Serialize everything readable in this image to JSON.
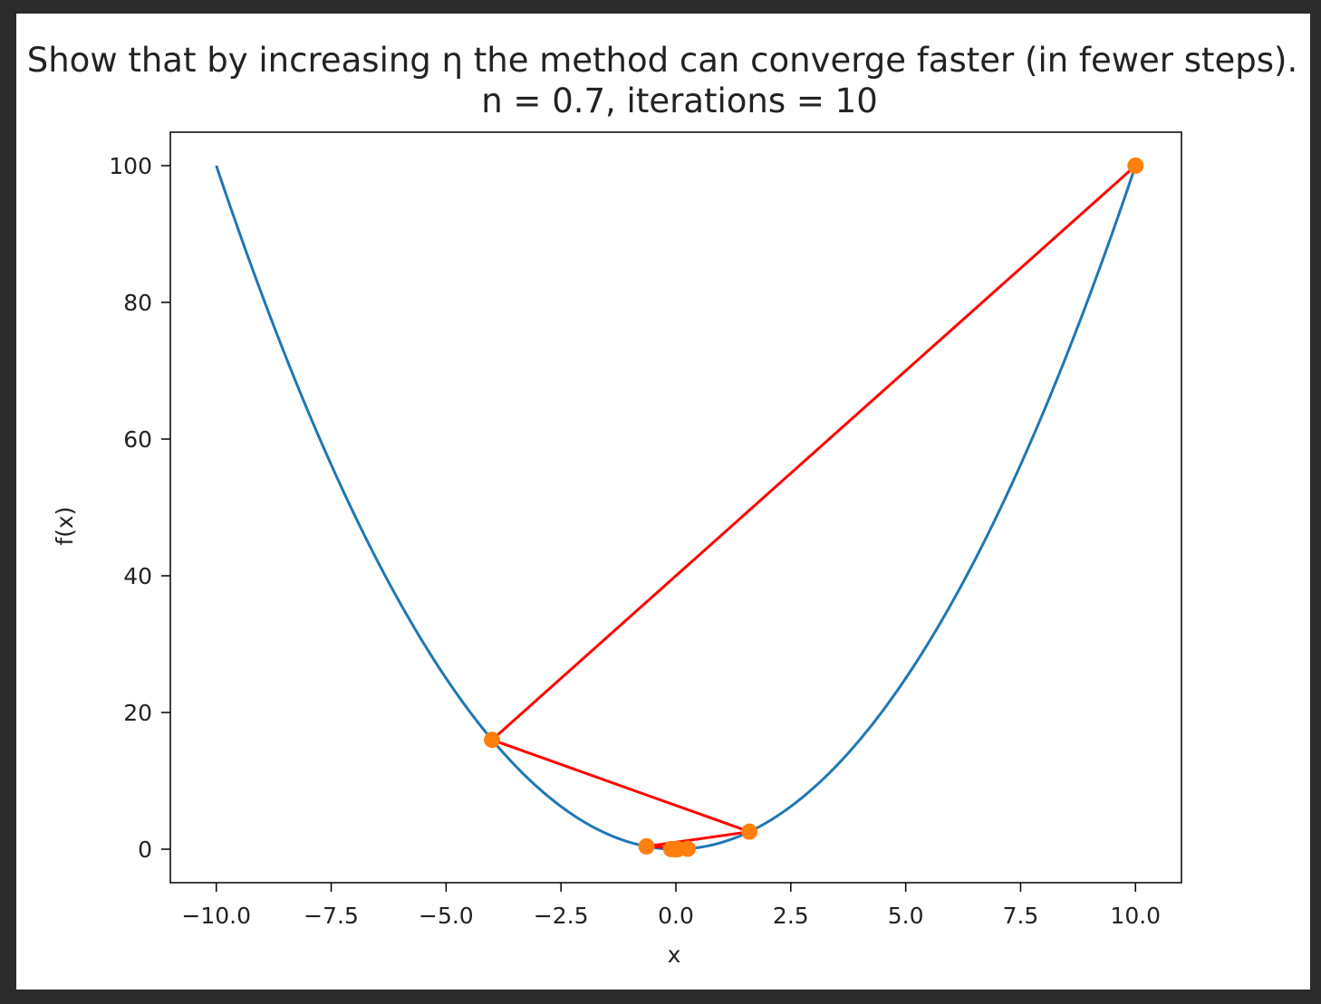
{
  "chart_data": {
    "type": "line",
    "title": "Show that by increasing η the method can converge faster (in fewer steps).",
    "subtitle": "n = 0.7, iterations = 10",
    "xlabel": "x",
    "ylabel": "f(x)",
    "xlim": [
      -11.0,
      11.0
    ],
    "ylim": [
      -4.9,
      104.9
    ],
    "x_ticks": [
      -10.0,
      -7.5,
      -5.0,
      -2.5,
      0.0,
      2.5,
      5.0,
      7.5,
      10.0
    ],
    "x_tick_labels": [
      "−10.0",
      "−7.5",
      "−5.0",
      "−2.5",
      "0.0",
      "2.5",
      "5.0",
      "7.5",
      "10.0"
    ],
    "y_ticks": [
      0,
      20,
      40,
      60,
      80,
      100
    ],
    "y_tick_labels": [
      "0",
      "20",
      "40",
      "60",
      "80",
      "100"
    ],
    "grid": false,
    "legend": "none",
    "series": [
      {
        "kind": "curve",
        "function": "x^2",
        "x_range": [
          -10,
          10
        ],
        "color": "#1f77b4"
      },
      {
        "kind": "steps",
        "color": "#ff0000",
        "marker_color": "#ff7f0e",
        "x": [
          10.0,
          -4.0,
          1.6,
          -0.64,
          0.256,
          -0.1024,
          0.04096,
          -0.016384,
          0.0065536,
          -0.00262144,
          0.001048576
        ],
        "y": [
          100.0,
          16.0,
          2.56,
          0.4096,
          0.065536,
          0.01048576,
          0.0016777216,
          0.000268435456,
          4.2949673e-05,
          6.87194767e-06,
          1.09951163e-06
        ]
      }
    ]
  }
}
